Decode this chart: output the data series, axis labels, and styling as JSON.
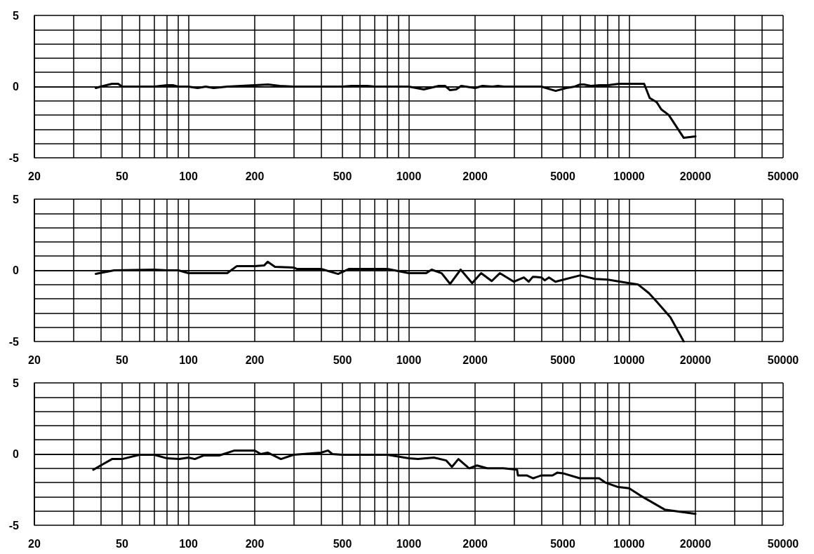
{
  "chart_data": [
    {
      "type": "line",
      "log": "x",
      "xlim": [
        20,
        50000
      ],
      "ylim": [
        -5,
        5
      ],
      "grid": true,
      "xticks": [
        20,
        {
          "value": 30,
          "label": null
        },
        {
          "value": 40,
          "label": null
        },
        50,
        {
          "value": 60,
          "label": null
        },
        {
          "value": 70,
          "label": null
        },
        {
          "value": 80,
          "label": null
        },
        {
          "value": 90,
          "label": null
        },
        100,
        200,
        {
          "value": 300,
          "label": null
        },
        {
          "value": 400,
          "label": null
        },
        500,
        {
          "value": 600,
          "label": null
        },
        {
          "value": 700,
          "label": null
        },
        {
          "value": 800,
          "label": null
        },
        {
          "value": 900,
          "label": null
        },
        1000,
        2000,
        {
          "value": 3000,
          "label": null
        },
        {
          "value": 4000,
          "label": null
        },
        5000,
        {
          "value": 6000,
          "label": null
        },
        {
          "value": 7000,
          "label": null
        },
        {
          "value": 8000,
          "label": null
        },
        {
          "value": 9000,
          "label": null
        },
        10000,
        20000,
        {
          "value": 30000,
          "label": null
        },
        {
          "value": 40000,
          "label": null
        },
        50000
      ],
      "yticks": [
        -5,
        {
          "value": -4,
          "label": null
        },
        {
          "value": -3,
          "label": null
        },
        {
          "value": -2,
          "label": null
        },
        {
          "value": -1,
          "label": null
        },
        0,
        {
          "value": 1,
          "label": null
        },
        {
          "value": 2,
          "label": null
        },
        {
          "value": 3,
          "label": null
        },
        {
          "value": 4,
          "label": null
        },
        5
      ],
      "series": [
        {
          "color": "#000000",
          "x": [
            38,
            40,
            45,
            48,
            50,
            60,
            70,
            80,
            85,
            90,
            100,
            110,
            120,
            130,
            150,
            200,
            230,
            260,
            300,
            500,
            550,
            650,
            700,
            1000,
            1170,
            1370,
            1460,
            1540,
            1640,
            1730,
            2000,
            2160,
            2400,
            2540,
            2700,
            3000,
            4000,
            4640,
            5190,
            5660,
            6000,
            6240,
            6700,
            7350,
            8020,
            9000,
            10000,
            11700,
            12400,
            13350,
            14000,
            15150,
            17700,
            20000
          ],
          "values": [
            -0.1,
            0,
            0.2,
            0.2,
            0,
            0,
            0,
            0.1,
            0.1,
            0,
            0,
            -0.1,
            0,
            -0.1,
            0,
            0.1,
            0.15,
            0.05,
            0,
            0,
            0.05,
            0.05,
            0,
            0,
            -0.2,
            0.05,
            0.05,
            -0.25,
            -0.2,
            0.05,
            -0.1,
            0.05,
            0,
            0.05,
            0,
            0,
            0,
            -0.3,
            -0.1,
            0,
            0.15,
            0.15,
            0.05,
            0.1,
            0.1,
            0.2,
            0.2,
            0.2,
            -0.8,
            -1.1,
            -1.6,
            -2,
            -3.6,
            -3.5
          ]
        }
      ]
    },
    {
      "type": "line",
      "log": "x",
      "xlim": [
        20,
        50000
      ],
      "ylim": [
        -5,
        5
      ],
      "grid": true,
      "xticks": [
        20,
        {
          "value": 30,
          "label": null
        },
        {
          "value": 40,
          "label": null
        },
        50,
        {
          "value": 60,
          "label": null
        },
        {
          "value": 70,
          "label": null
        },
        {
          "value": 80,
          "label": null
        },
        {
          "value": 90,
          "label": null
        },
        100,
        200,
        {
          "value": 300,
          "label": null
        },
        {
          "value": 400,
          "label": null
        },
        500,
        {
          "value": 600,
          "label": null
        },
        {
          "value": 700,
          "label": null
        },
        {
          "value": 800,
          "label": null
        },
        {
          "value": 900,
          "label": null
        },
        1000,
        2000,
        {
          "value": 3000,
          "label": null
        },
        {
          "value": 4000,
          "label": null
        },
        5000,
        {
          "value": 6000,
          "label": null
        },
        {
          "value": 7000,
          "label": null
        },
        {
          "value": 8000,
          "label": null
        },
        {
          "value": 9000,
          "label": null
        },
        10000,
        20000,
        {
          "value": 30000,
          "label": null
        },
        {
          "value": 40000,
          "label": null
        },
        50000
      ],
      "yticks": [
        -5,
        {
          "value": -4,
          "label": null
        },
        {
          "value": -3,
          "label": null
        },
        {
          "value": -2,
          "label": null
        },
        {
          "value": -1,
          "label": null
        },
        0,
        {
          "value": 1,
          "label": null
        },
        {
          "value": 2,
          "label": null
        },
        {
          "value": 3,
          "label": null
        },
        {
          "value": 4,
          "label": null
        },
        5
      ],
      "series": [
        {
          "color": "#000000",
          "x": [
            38,
            46,
            70,
            80,
            90,
            100,
            150,
            166,
            200,
            221,
            229,
            247,
            300,
            310,
            400,
            478,
            537,
            800,
            1000,
            1200,
            1270,
            1410,
            1540,
            1720,
            1940,
            2130,
            2380,
            2590,
            3000,
            3330,
            3500,
            3660,
            4000,
            4140,
            4330,
            4630,
            6000,
            7000,
            8000,
            10000,
            11000,
            12300,
            13350,
            15400,
            17700
          ],
          "values": [
            -0.25,
            0,
            0.05,
            0,
            0,
            -0.2,
            -0.2,
            0.3,
            0.3,
            0.35,
            0.6,
            0.25,
            0.2,
            0.1,
            0.1,
            -0.25,
            0.1,
            0.1,
            -0.2,
            -0.2,
            0.05,
            -0.2,
            -0.95,
            0.05,
            -0.9,
            -0.2,
            -0.75,
            -0.2,
            -0.8,
            -0.5,
            -0.8,
            -0.45,
            -0.5,
            -0.7,
            -0.5,
            -0.8,
            -0.35,
            -0.6,
            -0.65,
            -0.9,
            -1,
            -1.6,
            -2.2,
            -3.3,
            -5
          ]
        }
      ]
    },
    {
      "type": "line",
      "log": "x",
      "xlim": [
        20,
        50000
      ],
      "ylim": [
        -5,
        5
      ],
      "grid": true,
      "xticks": [
        20,
        {
          "value": 30,
          "label": null
        },
        {
          "value": 40,
          "label": null
        },
        50,
        {
          "value": 60,
          "label": null
        },
        {
          "value": 70,
          "label": null
        },
        {
          "value": 80,
          "label": null
        },
        {
          "value": 90,
          "label": null
        },
        100,
        200,
        {
          "value": 300,
          "label": null
        },
        {
          "value": 400,
          "label": null
        },
        500,
        {
          "value": 600,
          "label": null
        },
        {
          "value": 700,
          "label": null
        },
        {
          "value": 800,
          "label": null
        },
        {
          "value": 900,
          "label": null
        },
        1000,
        2000,
        {
          "value": 3000,
          "label": null
        },
        {
          "value": 4000,
          "label": null
        },
        5000,
        {
          "value": 6000,
          "label": null
        },
        {
          "value": 7000,
          "label": null
        },
        {
          "value": 8000,
          "label": null
        },
        {
          "value": 9000,
          "label": null
        },
        10000,
        20000,
        {
          "value": 30000,
          "label": null
        },
        {
          "value": 40000,
          "label": null
        },
        50000
      ],
      "yticks": [
        -5,
        {
          "value": -4,
          "label": null
        },
        {
          "value": -3,
          "label": null
        },
        {
          "value": -2,
          "label": null
        },
        {
          "value": -1,
          "label": null
        },
        0,
        {
          "value": 1,
          "label": null
        },
        {
          "value": 2,
          "label": null
        },
        {
          "value": 3,
          "label": null
        },
        {
          "value": 4,
          "label": null
        },
        5
      ],
      "series": [
        {
          "color": "#000000",
          "x": [
            37,
            40,
            45,
            50,
            60,
            70,
            80,
            91,
            100,
            107,
            117,
            138,
            162,
            200,
            213,
            229,
            263,
            300,
            400,
            430,
            450,
            500,
            800,
            1000,
            1100,
            1300,
            1480,
            1570,
            1680,
            1880,
            2040,
            2270,
            2690,
            3100,
            3130,
            3430,
            3670,
            4000,
            4490,
            4730,
            5010,
            5970,
            7310,
            7800,
            8840,
            10000,
            11500,
            14500,
            20000
          ],
          "values": [
            -1.1,
            -0.8,
            -0.35,
            -0.35,
            -0.05,
            -0.05,
            -0.3,
            -0.35,
            -0.25,
            -0.35,
            -0.1,
            -0.1,
            0.25,
            0.25,
            0,
            0.1,
            -0.35,
            -0.05,
            0.1,
            0.25,
            0,
            -0.05,
            -0.05,
            -0.3,
            -0.35,
            -0.25,
            -0.45,
            -0.9,
            -0.35,
            -1,
            -0.8,
            -1,
            -1,
            -1.1,
            -1.5,
            -1.5,
            -1.7,
            -1.5,
            -1.5,
            -1.3,
            -1.35,
            -1.7,
            -1.7,
            -2,
            -2.3,
            -2.4,
            -3,
            -3.9,
            -4.2
          ]
        }
      ]
    }
  ]
}
